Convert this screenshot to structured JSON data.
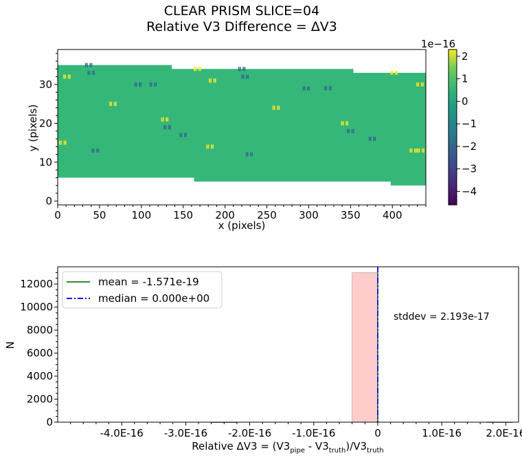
{
  "title_line1": "CLEAR   PRISM   SLICE=04",
  "title_line2": "Relative V3 Difference = ΔV3",
  "chart_data": [
    {
      "type": "heatmap",
      "xlabel": "x (pixels)",
      "ylabel": "y (pixels)",
      "xlim": [
        0,
        440
      ],
      "ylim": [
        -1,
        39
      ],
      "xticks": [
        "0",
        "50",
        "100",
        "150",
        "200",
        "250",
        "300",
        "350",
        "400"
      ],
      "yticks": [
        "0",
        "10",
        "20",
        "30"
      ],
      "colorbar": {
        "ticks": [
          "2",
          "1",
          "0",
          "−1",
          "−2",
          "−3",
          "−4"
        ],
        "scale_label": "1e−16",
        "range": [
          -4.6,
          2.3
        ]
      },
      "regions": [
        {
          "x": [
            0,
            136
          ],
          "y": [
            6,
            35
          ]
        },
        {
          "x": [
            136,
            163
          ],
          "y": [
            6,
            34
          ]
        },
        {
          "x": [
            163,
            353
          ],
          "y": [
            5,
            34
          ]
        },
        {
          "x": [
            353,
            398
          ],
          "y": [
            5,
            33
          ]
        },
        {
          "x": [
            398,
            440
          ],
          "y": [
            4,
            33
          ]
        }
      ],
      "spots": [
        {
          "x": 11,
          "y": 32,
          "v": 1.8
        },
        {
          "x": 37,
          "y": 35,
          "v": -1.5
        },
        {
          "x": 40,
          "y": 33,
          "v": -1.5
        },
        {
          "x": 6,
          "y": 15,
          "v": 1.8
        },
        {
          "x": 45,
          "y": 13,
          "v": -1.5
        },
        {
          "x": 66,
          "y": 25,
          "v": 1.8
        },
        {
          "x": 96,
          "y": 30,
          "v": -1.5
        },
        {
          "x": 114,
          "y": 30,
          "v": -1.5
        },
        {
          "x": 128,
          "y": 21,
          "v": 1.8
        },
        {
          "x": 131,
          "y": 19,
          "v": -1.5
        },
        {
          "x": 150,
          "y": 17,
          "v": -1.5
        },
        {
          "x": 167,
          "y": 34,
          "v": 1.8
        },
        {
          "x": 182,
          "y": 14,
          "v": 1.8
        },
        {
          "x": 185,
          "y": 31,
          "v": 1.8
        },
        {
          "x": 220,
          "y": 34,
          "v": -1.5
        },
        {
          "x": 224,
          "y": 32,
          "v": -1.5
        },
        {
          "x": 229,
          "y": 12,
          "v": -1.5
        },
        {
          "x": 261,
          "y": 24,
          "v": 1.8
        },
        {
          "x": 297,
          "y": 29,
          "v": -1.5
        },
        {
          "x": 323,
          "y": 29,
          "v": -1.5
        },
        {
          "x": 343,
          "y": 20,
          "v": 1.8
        },
        {
          "x": 350,
          "y": 18,
          "v": -1.5
        },
        {
          "x": 376,
          "y": 16,
          "v": -1.5
        },
        {
          "x": 402,
          "y": 33,
          "v": 1.8
        },
        {
          "x": 425,
          "y": 13,
          "v": 1.8
        },
        {
          "x": 434,
          "y": 13,
          "v": 1.8
        },
        {
          "x": 433,
          "y": 30,
          "v": 1.8
        }
      ]
    },
    {
      "type": "bar",
      "xlabel": "Relative ΔV3 = (V3pipe - V3truth)/V3truth",
      "ylabel": "N",
      "xlim": [
        -5.0,
        2.2
      ],
      "ylim": [
        0,
        13500
      ],
      "xticks": [
        {
          "v": -4.0,
          "label": "-4.0E-16"
        },
        {
          "v": -3.0,
          "label": "-3.0E-16"
        },
        {
          "v": -2.0,
          "label": "-2.0E-16"
        },
        {
          "v": -1.0,
          "label": "-1.0E-16"
        },
        {
          "v": 0.0,
          "label": "0"
        },
        {
          "v": 1.0,
          "label": "1.0E-16"
        },
        {
          "v": 2.0,
          "label": "2.0E-16"
        }
      ],
      "yticks": [
        "0",
        "2000",
        "4000",
        "6000",
        "8000",
        "10000",
        "12000"
      ],
      "bins": [
        {
          "x0": -2.6,
          "x1": -2.2,
          "count": 15
        },
        {
          "x0": -0.4,
          "x1": 0.0,
          "count": 12990
        },
        {
          "x0": 1.7,
          "x1": 2.1,
          "count": 15
        }
      ],
      "mean": -0.0015,
      "median": 0.0,
      "legend": {
        "mean_label": "mean = -1.571e-19",
        "median_label": "median = 0.000e+00",
        "placement": "top-left"
      },
      "stddev_label": "stddev = 2.193e-17",
      "colors": {
        "bar": "#ffcccc",
        "mean": "#2e8b2e",
        "median": "#0000ff",
        "zero_line": "#000000"
      }
    }
  ]
}
